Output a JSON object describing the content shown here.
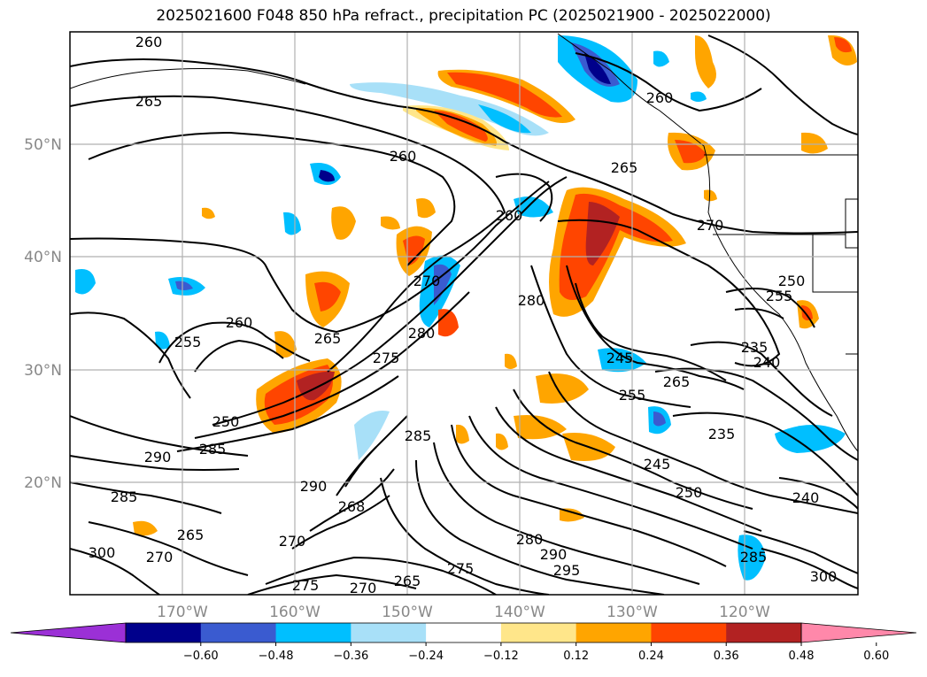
{
  "title": "2025021600 F048 850 hPa refract., precipitation PC (2025021900 - 2025022000)",
  "lat_labels": [
    "50°N",
    "40°N",
    "30°N",
    "20°N"
  ],
  "lon_labels": [
    "170°W",
    "160°W",
    "150°W",
    "140°W",
    "130°W",
    "120°W"
  ],
  "contour_labels": [
    "260",
    "265",
    "260",
    "265",
    "260",
    "270",
    "260",
    "255",
    "250",
    "280",
    "270",
    "265",
    "260",
    "280",
    "275",
    "255",
    "235",
    "245",
    "240",
    "265",
    "255",
    "250",
    "285",
    "235",
    "290",
    "285",
    "245",
    "250",
    "240",
    "285",
    "265",
    "300",
    "290",
    "268",
    "270",
    "280",
    "290",
    "295",
    "265",
    "275",
    "270",
    "275",
    "270",
    "285",
    "300"
  ],
  "colorbar": {
    "ticks": [
      "−0.60",
      "−0.48",
      "−0.36",
      "−0.24",
      "−0.12",
      "0.12",
      "0.24",
      "0.36",
      "0.48",
      "0.60"
    ],
    "colors": [
      "#9b30d6",
      "#00008b",
      "#3a5bd0",
      "#00bfff",
      "#a8e0f8",
      "#ffffff",
      "#ffe68a",
      "#ffa500",
      "#ff4500",
      "#b22222",
      "#ff88aa"
    ]
  },
  "colors": {
    "grid": "#b0b0b0",
    "axis_label": "#888888",
    "contour": "#000000"
  }
}
